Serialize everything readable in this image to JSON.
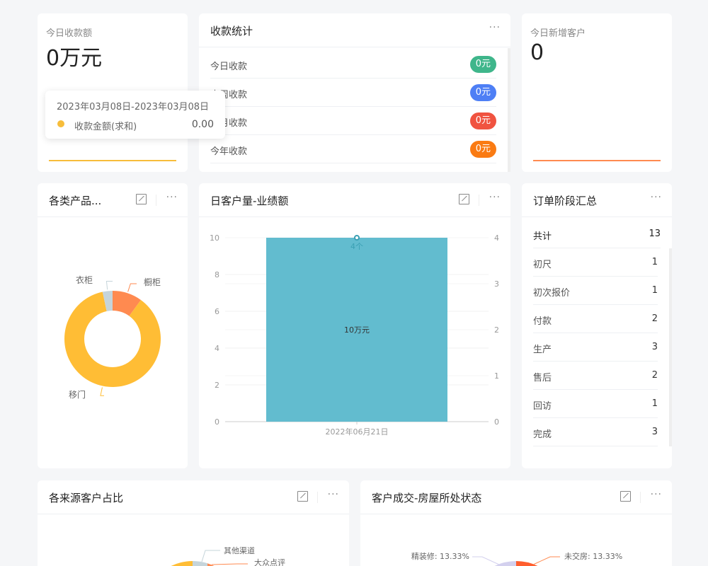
{
  "today_receipt": {
    "label": "今日收款额",
    "value": "0万元",
    "line_color": "#f7bd3b"
  },
  "tooltip": {
    "range": "2023年03月08日-2023年03月08日",
    "series": "收款金额(求和)",
    "value": "0.00",
    "dot_color": "#f7bd3b"
  },
  "receipt_stats": {
    "title": "收款统计",
    "rows": [
      {
        "label": "今日收款",
        "value": "0元",
        "color": "#3fb68b"
      },
      {
        "label": "本周收款",
        "value": "0元",
        "color": "#4e7ff5"
      },
      {
        "label": "本月收款",
        "value": "0元",
        "color": "#f05340"
      },
      {
        "label": "今年收款",
        "value": "0元",
        "color": "#fa7b13"
      }
    ]
  },
  "new_customers": {
    "label": "今日新增客户",
    "value": "0",
    "line_color": "#ff8a50"
  },
  "product_pie": {
    "title": "各类产品...",
    "chart_data": {
      "type": "pie",
      "donut": true,
      "categories": [
        "橱柜",
        "移门",
        "衣柜"
      ],
      "values": [
        3,
        26,
        1
      ],
      "colors": [
        "#ff8a50",
        "#ffbd35",
        "#c5d4da"
      ]
    }
  },
  "daily_chart": {
    "title": "日客户量-业绩额",
    "chart_data": {
      "type": "bar",
      "categories": [
        "2022年06月21日"
      ],
      "series": [
        {
          "kind": "bar",
          "axis": "left",
          "values": [
            10
          ],
          "label": "10万元",
          "color": "#62bccf"
        },
        {
          "kind": "line",
          "axis": "right",
          "values": [
            4
          ],
          "label": "4个",
          "color": "#3aa0b4"
        }
      ],
      "ylim_left": [
        0,
        10
      ],
      "yticks_left": [
        "0",
        "2",
        "4",
        "6",
        "8",
        "10"
      ],
      "ylim_right": [
        0,
        4
      ],
      "yticks_right": [
        "0",
        "1",
        "2",
        "3",
        "4"
      ],
      "grid": true
    }
  },
  "order_stages": {
    "title": "订单阶段汇总",
    "total_label": "共计",
    "total": "13",
    "rows": [
      {
        "label": "初尺",
        "value": "1"
      },
      {
        "label": "初次报价",
        "value": "1"
      },
      {
        "label": "付款",
        "value": "2"
      },
      {
        "label": "生产",
        "value": "3"
      },
      {
        "label": "售后",
        "value": "2"
      },
      {
        "label": "回访",
        "value": "1"
      },
      {
        "label": "完成",
        "value": "3"
      }
    ]
  },
  "source_pie": {
    "title": "各来源客户占比",
    "labels": [
      "其他渠道",
      "大众点评"
    ]
  },
  "house_pie": {
    "title": "客户成交-房屋所处状态",
    "labels": [
      "精装修: 13.33%",
      "未交房: 13.33%"
    ]
  }
}
